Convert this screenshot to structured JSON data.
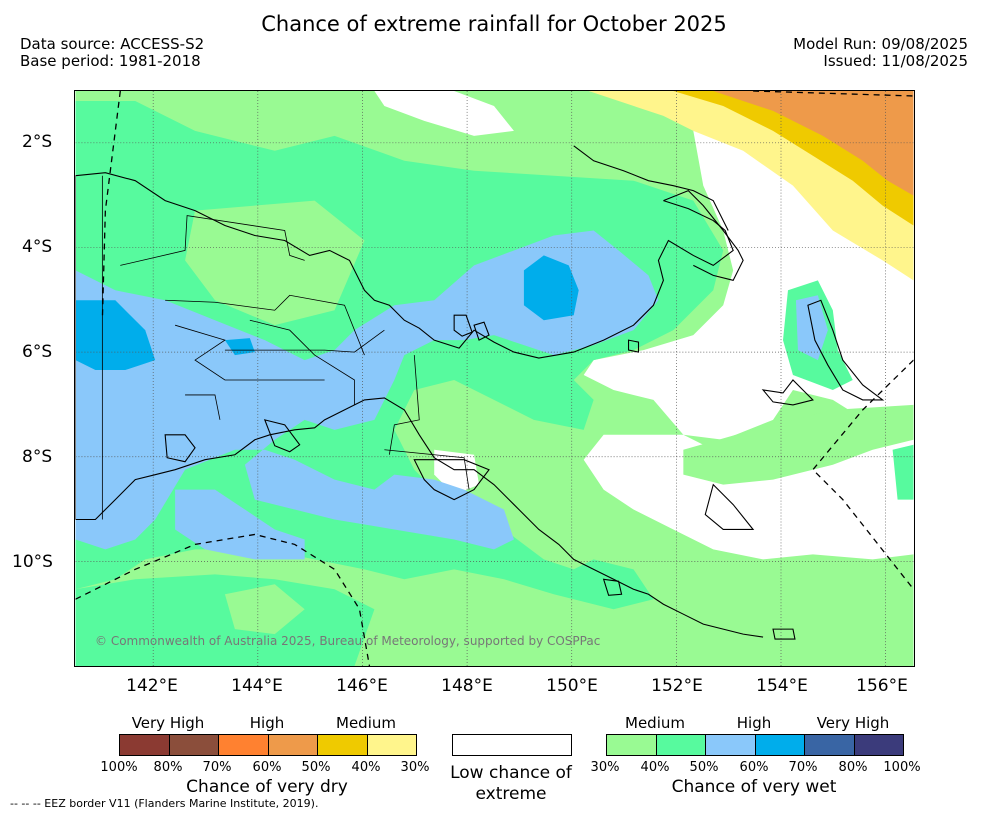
{
  "title": "Chance of extreme rainfall for October 2025",
  "header": {
    "data_source": "Data source: ACCESS-S2",
    "base_period": "Base period: 1981-2018",
    "model_run": "Model Run: 09/08/2025",
    "issued": "Issued: 11/08/2025"
  },
  "map": {
    "lat_labels": [
      "2°S",
      "4°S",
      "6°S",
      "8°S",
      "10°S"
    ],
    "lon_labels": [
      "142°E",
      "144°E",
      "146°E",
      "148°E",
      "150°E",
      "152°E",
      "154°E",
      "156°E"
    ],
    "copyright": "© Commonwealth of Australia 2025, Bureau of Meteorology, supported by COSPPac",
    "colors": {
      "wet_medium": "#99fa93",
      "wet_medium_high": "#57fa9e",
      "wet_high": "#8ac8fa",
      "wet_high_very": "#00adeb",
      "dry_medium": "#fff58c",
      "dry_medium_high": "#efca00",
      "dry_high": "#ee9a4a",
      "low": "#ffffff"
    }
  },
  "legend": {
    "dry": {
      "headings": [
        "Very High",
        "High",
        "Medium"
      ],
      "ticks": [
        "100%",
        "80%",
        "70%",
        "60%",
        "50%",
        "40%",
        "30%"
      ],
      "colors": [
        "#8b3a32",
        "#8b4e3b",
        "#ff8130",
        "#ee9a4a",
        "#efca00",
        "#fff58c"
      ],
      "caption": "Chance of very dry"
    },
    "low": {
      "caption": "Low chance of extreme"
    },
    "wet": {
      "headings": [
        "Medium",
        "High",
        "Very High"
      ],
      "ticks": [
        "30%",
        "40%",
        "50%",
        "60%",
        "70%",
        "80%",
        "100%"
      ],
      "colors": [
        "#99fa93",
        "#57fa9e",
        "#8ac8fa",
        "#00adeb",
        "#3965a4",
        "#3b3b7b"
      ],
      "caption": "Chance of very wet"
    }
  },
  "eez_note": "-- -- -- EEZ border V11 (Flanders Marine Institute, 2019)."
}
